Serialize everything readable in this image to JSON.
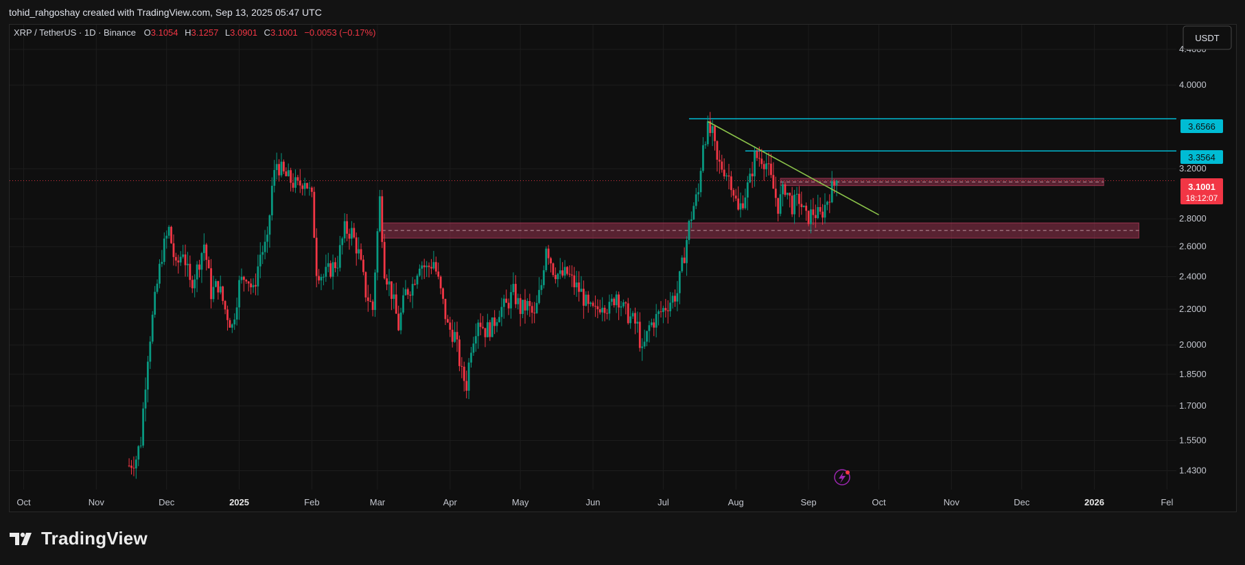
{
  "header": {
    "caption": "tohid_rahgoshay created with TradingView.com, Sep 13, 2025 05:47 UTC"
  },
  "legend": {
    "symbol": "XRP / TetherUS · 1D · Binance",
    "open_label": "O",
    "open": "3.1054",
    "high_label": "H",
    "high": "3.1257",
    "low_label": "L",
    "low": "3.0901",
    "close_label": "C",
    "close": "3.1001",
    "change": "−0.0053 (−0.17%)"
  },
  "currency_button": "USDT",
  "price_labels": {
    "level_top": "3.6566",
    "level_mid": "3.3564",
    "current_price": "3.1001",
    "countdown": "18:12:07"
  },
  "branding": {
    "logo_text": "TradingView"
  },
  "colors": {
    "up": "#089981",
    "down": "#f23645",
    "accent": "#00bcd4",
    "trendline": "#8bc34a",
    "zone": "#b23a5a",
    "current_price": "#f23645"
  },
  "chart_data": {
    "type": "candlestick",
    "symbol": "XRP / TetherUS",
    "interval": "1D",
    "exchange": "Binance",
    "y_scale": "log",
    "ylim": [
      1.36,
      4.7
    ],
    "y_ticks": [
      "4.4000",
      "4.0000",
      "3.2000",
      "2.8000",
      "2.6000",
      "2.4000",
      "2.2000",
      "2.0000",
      "1.8500",
      "1.7000",
      "1.5500",
      "1.4300"
    ],
    "x_ticks": [
      "Oct",
      "Nov",
      "Dec",
      "2025",
      "Feb",
      "Mar",
      "Apr",
      "May",
      "Jun",
      "Jul",
      "Aug",
      "Sep",
      "Oct",
      "Nov",
      "Dec",
      "2026",
      "Fel"
    ],
    "x_range": [
      "2024-09-25",
      "2026-02-05"
    ],
    "price_path": [
      [
        "2024-11-15",
        1.45
      ],
      [
        "2024-11-18",
        1.48
      ],
      [
        "2024-11-20",
        1.55
      ],
      [
        "2024-11-23",
        1.95
      ],
      [
        "2024-11-26",
        2.25
      ],
      [
        "2024-11-29",
        2.55
      ],
      [
        "2024-12-02",
        2.72
      ],
      [
        "2024-12-05",
        2.45
      ],
      [
        "2024-12-08",
        2.58
      ],
      [
        "2024-12-11",
        2.35
      ],
      [
        "2024-12-14",
        2.45
      ],
      [
        "2024-12-17",
        2.62
      ],
      [
        "2024-12-20",
        2.3
      ],
      [
        "2024-12-23",
        2.35
      ],
      [
        "2024-12-26",
        2.2
      ],
      [
        "2024-12-29",
        2.1
      ],
      [
        "2025-01-01",
        2.35
      ],
      [
        "2025-01-04",
        2.42
      ],
      [
        "2025-01-07",
        2.3
      ],
      [
        "2025-01-10",
        2.55
      ],
      [
        "2025-01-13",
        2.62
      ],
      [
        "2025-01-15",
        3.05
      ],
      [
        "2025-01-17",
        3.25
      ],
      [
        "2025-01-20",
        3.15
      ],
      [
        "2025-01-23",
        3.1
      ],
      [
        "2025-01-26",
        3.05
      ],
      [
        "2025-01-29",
        3.12
      ],
      [
        "2025-02-01",
        2.95
      ],
      [
        "2025-02-03",
        2.45
      ],
      [
        "2025-02-06",
        2.4
      ],
      [
        "2025-02-09",
        2.45
      ],
      [
        "2025-02-12",
        2.5
      ],
      [
        "2025-02-15",
        2.72
      ],
      [
        "2025-02-18",
        2.7
      ],
      [
        "2025-02-21",
        2.55
      ],
      [
        "2025-02-24",
        2.3
      ],
      [
        "2025-02-27",
        2.2
      ],
      [
        "2025-03-02",
        2.95
      ],
      [
        "2025-03-04",
        2.45
      ],
      [
        "2025-03-07",
        2.3
      ],
      [
        "2025-03-10",
        2.1
      ],
      [
        "2025-03-13",
        2.3
      ],
      [
        "2025-03-16",
        2.35
      ],
      [
        "2025-03-19",
        2.5
      ],
      [
        "2025-03-22",
        2.45
      ],
      [
        "2025-03-25",
        2.5
      ],
      [
        "2025-03-28",
        2.3
      ],
      [
        "2025-03-31",
        2.1
      ],
      [
        "2025-04-03",
        2.05
      ],
      [
        "2025-04-06",
        1.85
      ],
      [
        "2025-04-08",
        1.8
      ],
      [
        "2025-04-10",
        2.0
      ],
      [
        "2025-04-13",
        2.15
      ],
      [
        "2025-04-16",
        2.08
      ],
      [
        "2025-04-19",
        2.1
      ],
      [
        "2025-04-22",
        2.2
      ],
      [
        "2025-04-25",
        2.22
      ],
      [
        "2025-04-28",
        2.3
      ],
      [
        "2025-05-01",
        2.2
      ],
      [
        "2025-05-04",
        2.22
      ],
      [
        "2025-05-07",
        2.15
      ],
      [
        "2025-05-10",
        2.35
      ],
      [
        "2025-05-12",
        2.62
      ],
      [
        "2025-05-15",
        2.45
      ],
      [
        "2025-05-18",
        2.4
      ],
      [
        "2025-05-21",
        2.42
      ],
      [
        "2025-05-24",
        2.35
      ],
      [
        "2025-05-27",
        2.3
      ],
      [
        "2025-05-30",
        2.2
      ],
      [
        "2025-06-02",
        2.18
      ],
      [
        "2025-06-05",
        2.25
      ],
      [
        "2025-06-08",
        2.2
      ],
      [
        "2025-06-11",
        2.3
      ],
      [
        "2025-06-14",
        2.2
      ],
      [
        "2025-06-17",
        2.15
      ],
      [
        "2025-06-20",
        2.1
      ],
      [
        "2025-06-22",
        1.95
      ],
      [
        "2025-06-25",
        2.1
      ],
      [
        "2025-06-28",
        2.15
      ],
      [
        "2025-07-01",
        2.2
      ],
      [
        "2025-07-04",
        2.25
      ],
      [
        "2025-07-07",
        2.3
      ],
      [
        "2025-07-10",
        2.55
      ],
      [
        "2025-07-12",
        2.75
      ],
      [
        "2025-07-14",
        2.9
      ],
      [
        "2025-07-16",
        3.0
      ],
      [
        "2025-07-18",
        3.45
      ],
      [
        "2025-07-20",
        3.55
      ],
      [
        "2025-07-22",
        3.5
      ],
      [
        "2025-07-24",
        3.25
      ],
      [
        "2025-07-27",
        3.2
      ],
      [
        "2025-07-30",
        3.1
      ],
      [
        "2025-08-02",
        2.85
      ],
      [
        "2025-08-05",
        3.0
      ],
      [
        "2025-08-07",
        3.1
      ],
      [
        "2025-08-09",
        3.3
      ],
      [
        "2025-08-12",
        3.3
      ],
      [
        "2025-08-14",
        3.25
      ],
      [
        "2025-08-16",
        3.1
      ],
      [
        "2025-08-19",
        2.9
      ],
      [
        "2025-08-22",
        3.05
      ],
      [
        "2025-08-25",
        2.9
      ],
      [
        "2025-08-28",
        2.95
      ],
      [
        "2025-08-31",
        2.8
      ],
      [
        "2025-09-03",
        2.85
      ],
      [
        "2025-09-06",
        2.82
      ],
      [
        "2025-09-08",
        2.9
      ],
      [
        "2025-09-10",
        3.0
      ],
      [
        "2025-09-13",
        3.1001
      ]
    ],
    "horizontal_levels": [
      {
        "label": "3.6566",
        "value": 3.6566,
        "from": "2025-07-12"
      },
      {
        "label": "3.3564",
        "value": 3.3564,
        "from": "2025-08-05"
      }
    ],
    "zones": [
      {
        "top": 3.12,
        "bottom": 3.06,
        "from": "2025-08-20",
        "to": "2026-01-05"
      },
      {
        "top": 2.77,
        "bottom": 2.66,
        "from": "2025-03-03",
        "to": "2026-01-20"
      }
    ],
    "trendline": {
      "from": [
        "2025-07-20",
        3.63
      ],
      "to": [
        "2025-10-01",
        2.83
      ]
    },
    "current_price": 3.1001,
    "grid": true
  }
}
